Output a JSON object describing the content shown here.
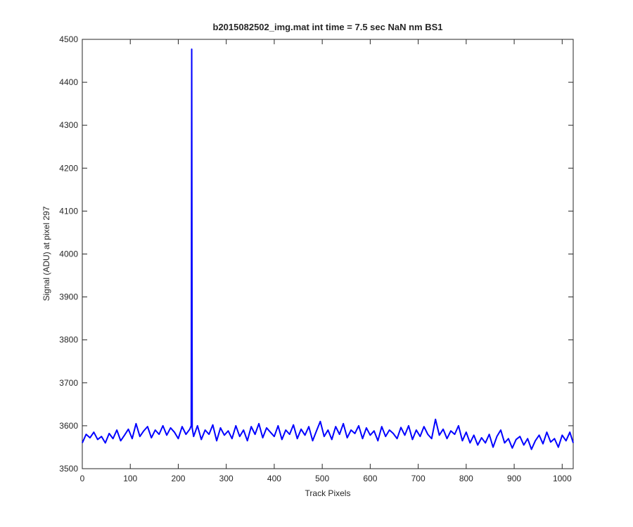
{
  "chart_data": {
    "type": "line",
    "title": "b2015082502_img.mat int time = 7.5 sec  NaN nm BS1",
    "x_label": "Track Pixels",
    "y_label": "Signal (ADU) at pixel 297",
    "xlim": [
      0,
      1023
    ],
    "ylim": [
      3500,
      4500
    ],
    "xticks": [
      0,
      100,
      200,
      300,
      400,
      500,
      600,
      700,
      800,
      900,
      1000
    ],
    "yticks": [
      3500,
      3600,
      3700,
      3800,
      3900,
      4000,
      4100,
      4200,
      4300,
      4400,
      4500
    ],
    "x": [
      0,
      8,
      16,
      24,
      32,
      40,
      48,
      56,
      64,
      72,
      80,
      88,
      96,
      104,
      112,
      120,
      128,
      136,
      144,
      152,
      160,
      168,
      176,
      184,
      192,
      200,
      208,
      216,
      224,
      227,
      228,
      229,
      232,
      240,
      248,
      256,
      264,
      272,
      280,
      288,
      296,
      304,
      312,
      320,
      328,
      336,
      344,
      352,
      360,
      368,
      376,
      384,
      392,
      400,
      408,
      416,
      424,
      432,
      440,
      448,
      456,
      464,
      472,
      480,
      488,
      496,
      504,
      512,
      520,
      528,
      536,
      544,
      552,
      560,
      568,
      576,
      584,
      592,
      600,
      608,
      616,
      624,
      632,
      640,
      648,
      656,
      664,
      672,
      680,
      688,
      696,
      704,
      712,
      720,
      728,
      736,
      744,
      752,
      760,
      768,
      776,
      784,
      792,
      800,
      808,
      816,
      824,
      832,
      840,
      848,
      856,
      864,
      872,
      880,
      888,
      896,
      904,
      912,
      920,
      928,
      936,
      944,
      952,
      960,
      968,
      976,
      984,
      992,
      1000,
      1008,
      1016,
      1023
    ],
    "series": [
      {
        "color": "#0000ff",
        "values": [
          3560,
          3580,
          3572,
          3585,
          3568,
          3575,
          3560,
          3582,
          3570,
          3590,
          3565,
          3578,
          3592,
          3570,
          3605,
          3575,
          3588,
          3598,
          3572,
          3590,
          3580,
          3600,
          3578,
          3595,
          3585,
          3570,
          3598,
          3580,
          3592,
          3600,
          4477,
          3595,
          3575,
          3600,
          3568,
          3590,
          3580,
          3602,
          3565,
          3595,
          3578,
          3588,
          3570,
          3600,
          3575,
          3590,
          3565,
          3598,
          3580,
          3605,
          3572,
          3595,
          3585,
          3575,
          3600,
          3568,
          3590,
          3580,
          3602,
          3570,
          3592,
          3578,
          3598,
          3565,
          3588,
          3610,
          3575,
          3590,
          3568,
          3598,
          3580,
          3605,
          3572,
          3590,
          3582,
          3600,
          3570,
          3595,
          3578,
          3588,
          3565,
          3598,
          3575,
          3590,
          3582,
          3570,
          3596,
          3578,
          3600,
          3568,
          3590,
          3575,
          3598,
          3580,
          3570,
          3615,
          3578,
          3592,
          3570,
          3588,
          3580,
          3600,
          3565,
          3585,
          3560,
          3578,
          3555,
          3572,
          3560,
          3580,
          3550,
          3575,
          3590,
          3560,
          3570,
          3548,
          3568,
          3575,
          3555,
          3570,
          3545,
          3565,
          3578,
          3558,
          3585,
          3562,
          3570,
          3550,
          3578,
          3565,
          3585,
          3560
        ]
      }
    ]
  }
}
